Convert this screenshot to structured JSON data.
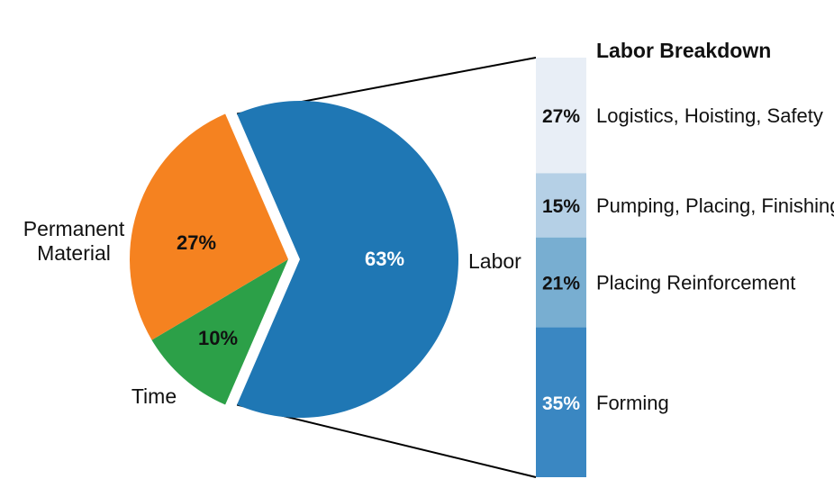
{
  "chart_data": {
    "type": "bar-of-pie",
    "pie": {
      "slices": [
        {
          "category": "Labor",
          "value": 63,
          "label": "63%",
          "color": "#1f77b4",
          "exploded": true
        },
        {
          "category": "Time",
          "value": 10,
          "label": "10%",
          "color": "#2ca048"
        },
        {
          "category": "Permanent Material",
          "value": 27,
          "label": "27%",
          "color": "#f58220"
        }
      ]
    },
    "breakdown": {
      "title": "Labor Breakdown",
      "segments": [
        {
          "label": "Logistics, Hoisting, Safety",
          "value": 27,
          "pct_label": "27%",
          "color": "#e8eef6"
        },
        {
          "label": "Pumping, Placing, Finishing",
          "value": 15,
          "pct_label": "15%",
          "color": "#b5d0e6"
        },
        {
          "label": "Placing Reinforcement",
          "value": 21,
          "pct_label": "21%",
          "color": "#78aed1"
        },
        {
          "label": "Forming",
          "value": 35,
          "pct_label": "35%",
          "color": "#3a87c2"
        }
      ]
    }
  }
}
